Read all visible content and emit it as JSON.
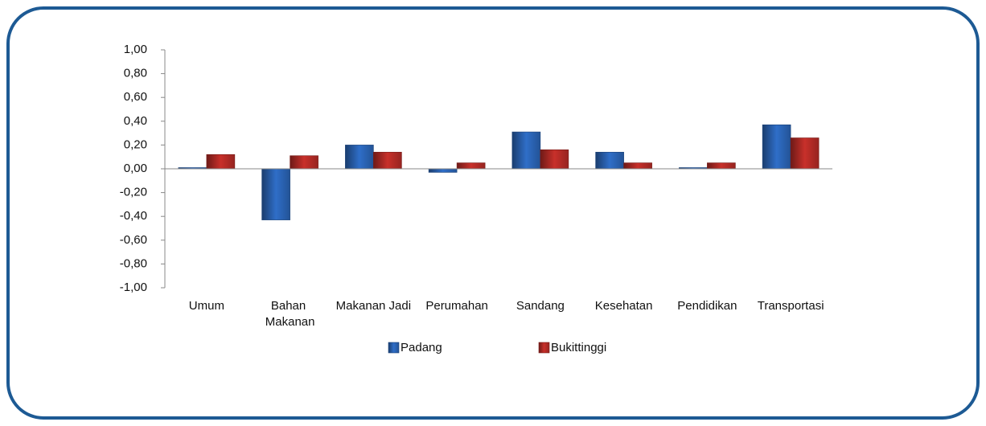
{
  "chart_data": {
    "type": "bar",
    "categories": [
      "Umum",
      "Bahan Makanan",
      "Makanan Jadi",
      "Perumahan",
      "Sandang",
      "Kesehatan",
      "Pendidikan",
      "Transportasi"
    ],
    "series": [
      {
        "name": "Padang",
        "color": "#2f6ec8",
        "values": [
          0.01,
          -0.43,
          0.2,
          -0.03,
          0.31,
          0.14,
          0.01,
          0.37
        ]
      },
      {
        "name": "Bukittinggi",
        "color": "#c8302a",
        "values": [
          0.12,
          0.11,
          0.14,
          0.05,
          0.16,
          0.05,
          0.05,
          0.26
        ]
      }
    ],
    "ylim": [
      -1,
      1
    ],
    "yticks": [
      {
        "value": -1,
        "label": "-1,00"
      },
      {
        "value": -0.8,
        "label": "-0,80"
      },
      {
        "value": -0.6,
        "label": "-0,60"
      },
      {
        "value": -0.4,
        "label": "-0,40"
      },
      {
        "value": -0.2,
        "label": "-0,20"
      },
      {
        "value": 0,
        "label": "0,00"
      },
      {
        "value": 0.2,
        "label": "0,20"
      },
      {
        "value": 0.4,
        "label": "0,40"
      },
      {
        "value": 0.6,
        "label": "0,60"
      },
      {
        "value": 0.8,
        "label": "0,80"
      },
      {
        "value": 1,
        "label": "1,00"
      }
    ],
    "legend": "bottom"
  }
}
